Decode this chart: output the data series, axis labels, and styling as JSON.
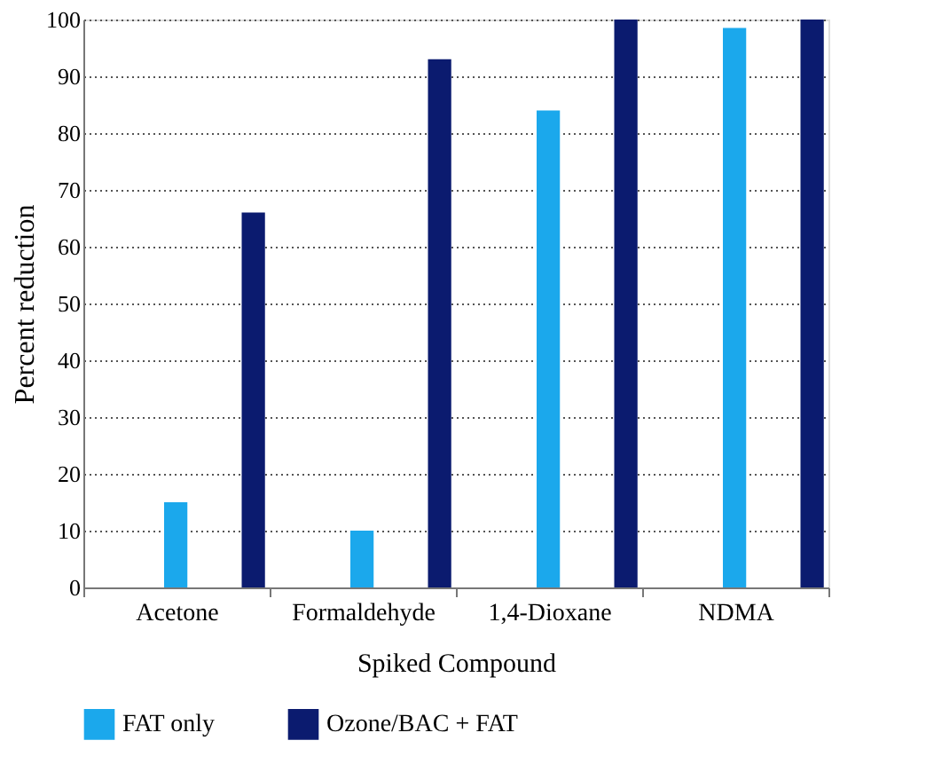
{
  "chart_data": {
    "type": "bar",
    "xlabel": "Spiked Compound",
    "ylabel": "Percent reduction",
    "categories": [
      "Acetone",
      "Formaldehyde",
      "1,4-Dioxane",
      "NDMA"
    ],
    "series": [
      {
        "name": "FAT only",
        "color": "#1ba8ec",
        "values": [
          15,
          10,
          84,
          98.5
        ]
      },
      {
        "name": "Ozone/BAC + FAT",
        "color": "#0b1b6f",
        "values": [
          66,
          93,
          100,
          100
        ]
      }
    ],
    "ylim": [
      0,
      100
    ],
    "yticks": [
      0,
      10,
      20,
      30,
      40,
      50,
      60,
      70,
      80,
      90,
      100
    ],
    "grid": "y",
    "legend": "bottom"
  }
}
